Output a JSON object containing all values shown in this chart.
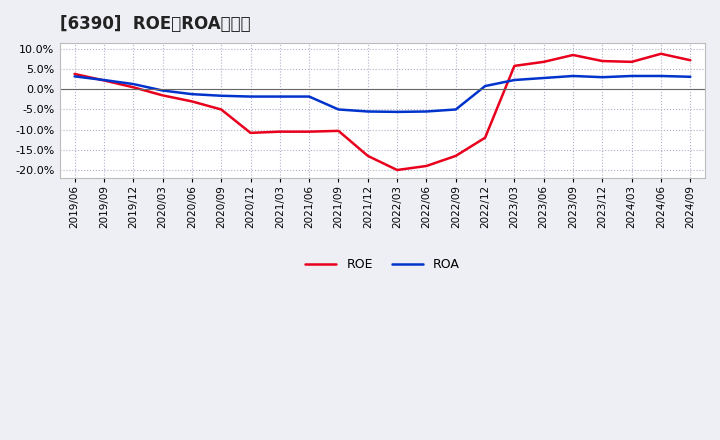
{
  "title": "[6390]  ROE、ROAの推移",
  "x_labels": [
    "2019/06",
    "2019/09",
    "2019/12",
    "2020/03",
    "2020/06",
    "2020/09",
    "2020/12",
    "2021/03",
    "2021/06",
    "2021/09",
    "2021/12",
    "2022/03",
    "2022/06",
    "2022/09",
    "2022/12",
    "2023/03",
    "2023/06",
    "2023/09",
    "2023/12",
    "2024/03",
    "2024/06",
    "2024/09"
  ],
  "roe": [
    3.8,
    2.2,
    0.5,
    -1.5,
    -3.0,
    -5.0,
    -10.8,
    -10.5,
    -10.5,
    -10.3,
    -16.5,
    -20.0,
    -19.0,
    -16.5,
    -12.0,
    5.8,
    6.8,
    8.5,
    7.0,
    6.8,
    8.8,
    7.2
  ],
  "roa": [
    3.2,
    2.3,
    1.3,
    -0.3,
    -1.2,
    -1.6,
    -1.8,
    -1.8,
    -1.8,
    -5.0,
    -5.5,
    -5.6,
    -5.5,
    -5.0,
    0.8,
    2.3,
    2.8,
    3.3,
    3.0,
    3.3,
    3.3,
    3.1
  ],
  "roe_color": "#e8001c",
  "roa_color": "#0033cc",
  "fig_bg_color": "#eeeef5",
  "plot_bg_color": "#ffffff",
  "grid_color": "#b0b0cc",
  "ylim": [
    -22,
    11.5
  ],
  "yticks": [
    -20,
    -15,
    -10,
    -5,
    0,
    5,
    10
  ],
  "legend_roe": "ROE",
  "legend_roa": "ROA",
  "title_fontsize": 12,
  "tick_fontsize": 7.5,
  "ytick_fontsize": 8
}
